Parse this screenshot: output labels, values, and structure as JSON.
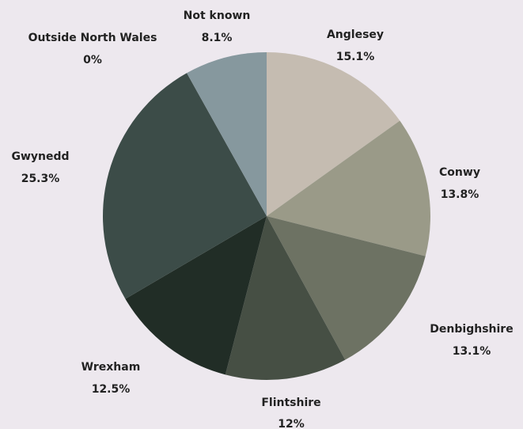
{
  "chart_data": {
    "type": "pie",
    "title": "",
    "start_angle_deg": 0,
    "direction": "clockwise",
    "slices": [
      {
        "label": "Anglesey",
        "value": 15.1,
        "value_label": "15.1%",
        "color": "#c5bcb1"
      },
      {
        "label": "Conwy",
        "value": 13.8,
        "value_label": "13.8%",
        "color": "#9a9a88"
      },
      {
        "label": "Denbighshire",
        "value": 13.1,
        "value_label": "13.1%",
        "color": "#6d7263"
      },
      {
        "label": "Flintshire",
        "value": 12,
        "value_label": "12%",
        "color": "#464f44"
      },
      {
        "label": "Wrexham",
        "value": 12.5,
        "value_label": "12.5%",
        "color": "#212d26"
      },
      {
        "label": "Gwynedd",
        "value": 25.3,
        "value_label": "25.3%",
        "color": "#3c4c48"
      },
      {
        "label": "Outside North Wales",
        "value": 0,
        "value_label": "0%",
        "color": "#5f6f70"
      },
      {
        "label": "Not known",
        "value": 8.1,
        "value_label": "8.1%",
        "color": "#86989e"
      }
    ]
  }
}
